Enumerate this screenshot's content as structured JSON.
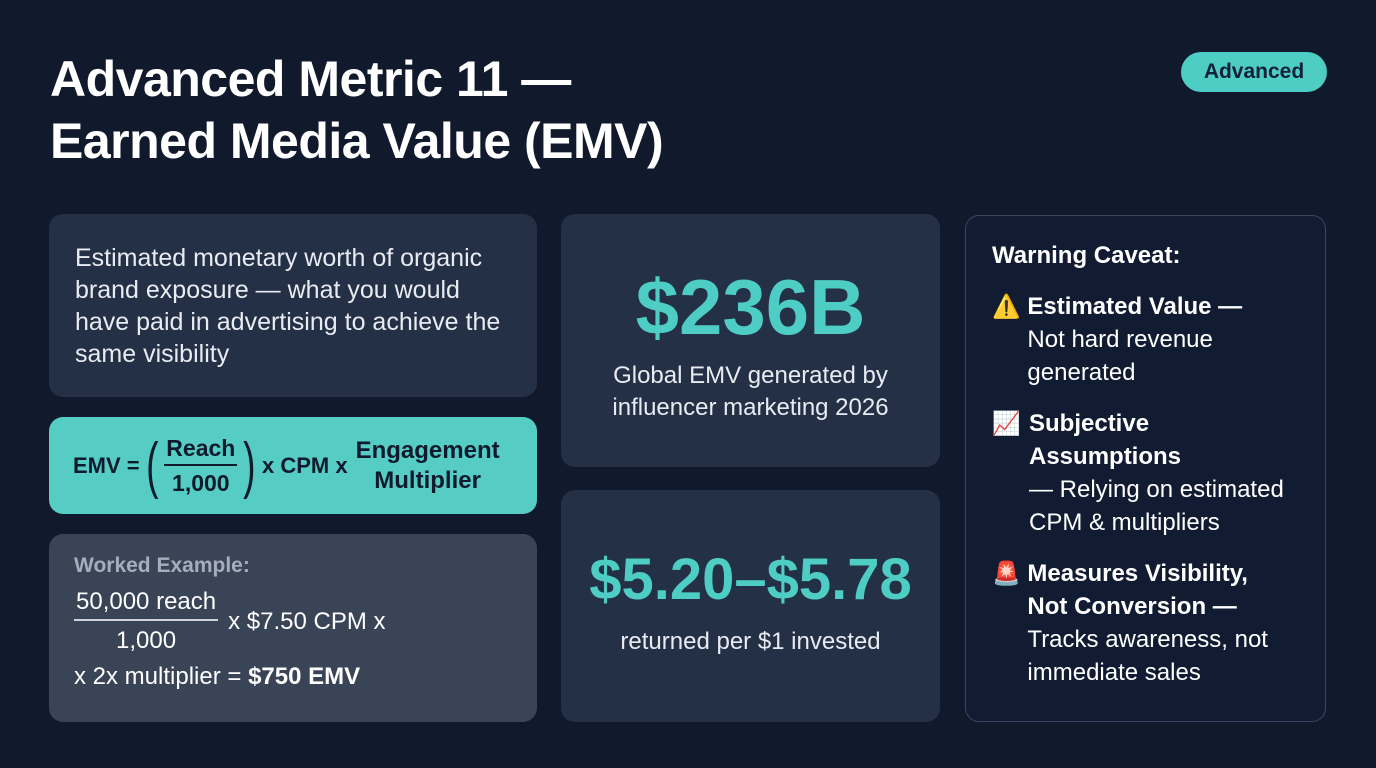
{
  "title": {
    "line1": "Advanced Metric 11 —",
    "line2": "Earned Media Value (EMV)"
  },
  "badge": "Advanced",
  "definition": "Estimated monetary worth of organic brand exposure — what you would have paid in advertising to achieve the same visibility",
  "formula": {
    "lhs": "EMV =",
    "numerator": "Reach",
    "denominator": "1,000",
    "middle": "x CPM x",
    "term_line1": "Engagement",
    "term_line2": "Multiplier"
  },
  "example": {
    "label": "Worked Example:",
    "numerator": "50,000 reach",
    "denominator": "1,000",
    "middle": "x $7.50 CPM x",
    "line2_prefix": "x 2x multiplier =",
    "result": "$750 EMV"
  },
  "stat1": {
    "value": "$236B",
    "caption": "Global EMV generated by influencer marketing 2026"
  },
  "stat2": {
    "value": "$5.20–$5.78",
    "caption": "returned per $1 invested"
  },
  "warning": {
    "title": "Warning Caveat:",
    "items": [
      {
        "icon": "warning-icon",
        "glyph": "⚠️",
        "title": "Estimated Value —",
        "desc": "Not hard revenue generated"
      },
      {
        "icon": "chart-increasing-icon",
        "glyph": "📈",
        "title": "Subjective Assumptions",
        "desc": "— Relying on estimated CPM & multipliers"
      },
      {
        "icon": "siren-icon",
        "glyph": "🚨",
        "title": "Measures Visibility, Not Conversion —",
        "desc": "Tracks awareness, not immediate sales"
      }
    ]
  },
  "colors": {
    "background": "#111a2d",
    "accent": "#4ecdc4",
    "card": "#243045"
  }
}
